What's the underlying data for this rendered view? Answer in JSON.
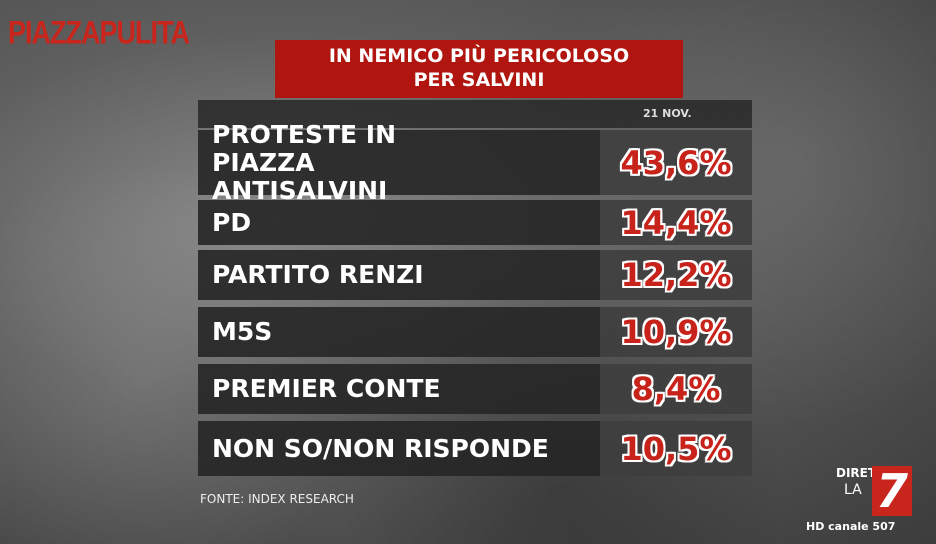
{
  "logo": "PIAZZAPULITA",
  "title": {
    "lines": [
      "IN NEMICO PIÙ PERICOLOSO",
      "PER SALVINI"
    ]
  },
  "table": {
    "header": "21 NOV.",
    "rows": [
      [
        "PROTESTE IN PIAZZA ANTISALVINI",
        "43,6%"
      ],
      [
        "PD",
        "14,4%"
      ],
      [
        "PARTITO RENZI",
        "12,2%"
      ],
      [
        "M5S",
        "10,9%"
      ],
      [
        "PREMIER CONTE",
        "8,4%"
      ],
      [
        "NON SO/NON RISPONDE",
        "10,5%"
      ]
    ]
  },
  "source": "FONTE: INDEX RESEARCH",
  "channel": {
    "live": "DIRETTA",
    "brand": "LA",
    "number": "7",
    "hd": "HD canale 507"
  }
}
